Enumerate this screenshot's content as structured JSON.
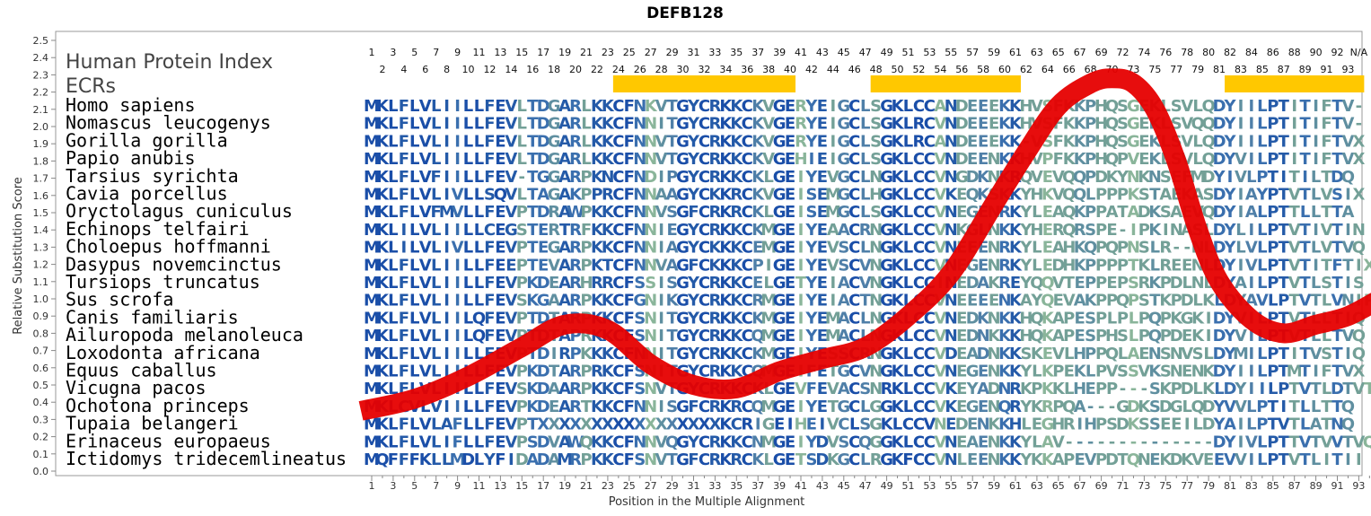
{
  "chart_data": {
    "type": "line",
    "title": "DEFB128",
    "xlabel": "Position in the Multiple Alignment",
    "ylabel": "Relative Substitution Score",
    "ylim": [
      0.0,
      2.5
    ],
    "yticks": [
      "0.0",
      "0.1",
      "0.2",
      "0.3",
      "0.4",
      "0.5",
      "0.6",
      "0.7",
      "0.8",
      "0.9",
      "1.0",
      "1.1",
      "1.2",
      "1.3",
      "1.4",
      "1.5",
      "1.6",
      "1.7",
      "1.8",
      "1.9",
      "2.0",
      "2.1",
      "2.2",
      "2.3",
      "2.4",
      "2.5"
    ],
    "xticks_bottom": [
      "1",
      "3",
      "5",
      "7",
      "9",
      "11",
      "13",
      "15",
      "17",
      "19",
      "21",
      "23",
      "25",
      "27",
      "29",
      "31",
      "33",
      "35",
      "37",
      "39",
      "41",
      "43",
      "45",
      "47",
      "49",
      "51",
      "53",
      "55",
      "57",
      "59",
      "61",
      "63",
      "65",
      "67",
      "69",
      "71",
      "73",
      "75",
      "77",
      "79",
      "81",
      "83",
      "85",
      "87",
      "89",
      "91",
      "93"
    ],
    "top_row1": [
      "1",
      "3",
      "5",
      "7",
      "9",
      "11",
      "13",
      "15",
      "17",
      "19",
      "21",
      "23",
      "25",
      "27",
      "29",
      "31",
      "33",
      "35",
      "37",
      "39",
      "41",
      "43",
      "45",
      "47",
      "49",
      "51",
      "53",
      "55",
      "57",
      "59",
      "61",
      "63",
      "65",
      "67",
      "69",
      "72",
      "74",
      "76",
      "78",
      "80",
      "82",
      "84",
      "86",
      "88",
      "90",
      "92",
      "N/A"
    ],
    "top_row2": [
      "2",
      "4",
      "6",
      "8",
      "10",
      "12",
      "14",
      "16",
      "18",
      "20",
      "22",
      "24",
      "26",
      "28",
      "30",
      "32",
      "34",
      "36",
      "38",
      "40",
      "42",
      "44",
      "46",
      "48",
      "50",
      "52",
      "54",
      "56",
      "58",
      "60",
      "62",
      "64",
      "66",
      "68",
      "70",
      "73",
      "75",
      "77",
      "79",
      "81",
      "83",
      "85",
      "87",
      "89",
      "91",
      "93"
    ],
    "index_labels": [
      "Human Protein Index",
      "ECRs"
    ],
    "ecr_regions": [
      [
        24,
        40
      ],
      [
        48,
        61
      ],
      [
        81,
        93
      ]
    ],
    "curve": {
      "x": [
        0,
        5,
        10,
        15,
        19,
        23,
        27,
        31,
        35,
        39,
        43,
        47,
        51,
        55,
        59,
        62,
        65,
        68,
        70,
        72,
        74,
        76,
        78,
        80,
        83,
        86,
        89,
        92,
        95
      ],
      "y": [
        0.35,
        0.42,
        0.55,
        0.72,
        0.85,
        0.82,
        0.62,
        0.5,
        0.48,
        0.58,
        0.65,
        0.72,
        0.9,
        1.15,
        1.55,
        1.85,
        2.12,
        2.25,
        2.28,
        2.25,
        2.1,
        1.8,
        1.4,
        1.1,
        0.88,
        0.8,
        0.85,
        0.9,
        1.0
      ]
    },
    "species": [
      {
        "name": "Homo sapiens",
        "seq": "MKLFLVLIILLFEVLTDGARLKKCFNKVTGYCRKKCKVGERYEIGCLSGKLCCANDEEEKKHVSFKKPHQSGEKLSVLQDYIILPTITIFTV-"
      },
      {
        "name": "Nomascus leucogenys",
        "seq": "MKLFLVLIILLFEVLTDGARLKKCFNNITGYCRKKCKVGERYEIGCLSGKLRCVNDEEEKKHVSFKKPHQSGEKLSVQQDYIILPTITIFTV-"
      },
      {
        "name": "Gorilla gorilla",
        "seq": "MKLFLVLIILLFEVLTDGARLKKCFNNVTGYCRKKCKVGERYEIGCLSGKLRCANDEEEKK-VSFKKPHQSGEKLSVLQDYIILPTITIFTVX"
      },
      {
        "name": "Papio anubis",
        "seq": "MKLFLVLIILLFEVLTDGARLKKCFNNVTGYCRKKCKVGEHIEIGCLSGKLCCVNDEENKKHVPFKKPHQPVEKLSVLQDYVILPTITIFTVX"
      },
      {
        "name": "Tarsius syrichta",
        "seq": "MKLFLVFIILLFEV-TGGARPKNCFNDIPGYCRKKCKLGEIYEVGCLNGKLCCVNGDKNKRQVEVQQPDKYNKNSEFMDYIVLPTITILTDQ"
      },
      {
        "name": "Cavia porcellus",
        "seq": "MKLFLVLIVLLSQVLTAGAKPPRCFNNAAGYCKKRCKVGEISEMGCLHGKLCCVKEQKSKKYHKVQQLPPPKSTAEKASDYIAYPTVTLVSIX"
      },
      {
        "name": "Oryctolagus cuniculus",
        "seq": "MKLFLVFMVLLFEVPTDRAWPKKCFNNVSGFCRKRCKLGEISEMGCLSGKLCCVNEGENRKYLEAQKPPATADKSAEVQDYIALPTTLLTTA"
      },
      {
        "name": "Echinops telfairi",
        "seq": "MKLILVLIILLCEGSTERTRFKKCFNNIEGYCRKKCKMGEIYEAACRNGKLCCVNKGLNKKYHERQRSPE-IPKINASLDYLILPTVTIVTIN"
      },
      {
        "name": "Choloepus hoffmanni",
        "seq": "MKLILVLIVLLFEVPTEGARPKKCFNNIAGYCKKKCEMGEIYEVSCLNGKLCCVNEEENRKYLEAHKQPQPNSLR--NLDYLVLPTVTLVTVQ"
      },
      {
        "name": "Dasypus novemcinctus",
        "seq": "MKLFLVLIILLFEEPTEVARPKTCFNNVAGFCKKKCPIGEIYEVSCVNGKLCCVNEGENRKYLEDHKPPPPTKLREENLDYIVLPTVTITFTIX"
      },
      {
        "name": "Tursiops truncatus",
        "seq": "MKLFLVLIILLFEVPKDEARHRRCFSSISGYCRKKCELGETYEIACVNGKLCCINEDAKREYQQVTEPPEPSRKPDLNLDYAILPTVTLSTIS"
      },
      {
        "name": "Sus scrofa",
        "seq": "MKLFLVLIILLFEVSKGAARPKKCFGNIKGYCRKKCRMGEIYEIACTNGKLCCVNEEEENKAYQEVAKPPQPSTKPDLKLDYAVLPTVTLVNIP"
      },
      {
        "name": "Canis familiaris",
        "seq": "MKLFLVLIILQFEVPTDTARPKKCFSNITGYCRKKCKMGEIYEMACLNGKLCCVNEDKNKKHQKAPESPLPLPQPKGKIDYVILPTVTLLTIQ"
      },
      {
        "name": "Ailuropoda melanoleuca",
        "seq": "MKLFLVLIILQFEVPTDTAPRKKCFSNITGYCRKKCQMGEIYEMACLNGKLCCVNEDNKKKHQKAPESPHSLPQPDEKIDYVILPTVTLLTVQ"
      },
      {
        "name": "Loxodonta africana",
        "seq": "MKLFLVLIILLFEVPTDIRPKKKCFNNITGYCRKKCKMGEIYESSCRNGKLCCVDEADNKKSKEVLHPPQLAENSNVSLDYMILPTITVSTIQ"
      },
      {
        "name": "Equus caballus",
        "seq": "MKLFLVLIILLFEVPKDTARPRKCFSNITGYCRKKCQMGEIFETGCVNGKLCCVNEGENKKYLKPEKLPVSSVKSNENKDYIILPTMTIFTVX"
      },
      {
        "name": "Vicugna pacos",
        "seq": "MKLFLVLIILLFEVSKDAARPKKCFSNVTGYCRKKCKLGEVFEVACSNRKLCCVKEYADNRKPKKLHEPP---SKPDLKLDYIILPTVTLDTVT"
      },
      {
        "name": "Ochotona princeps",
        "seq": "MKLCVLVIILLFEVPKDEARTKKCFNNISGFCRKRCQMGEIYETGCLGGKLCCVKEGENQRYKRPQA---GDKSDGLQDYVVLPTITLLTTQ"
      },
      {
        "name": "Tupaia belangeri",
        "seq": "MKLFLVLAFLLFEVPTXXXXXXXXXXXXXXXXXKCRIGEIHEIVCLSGKLCCVNEDENKKHLEGHRIHPSDKSSEEILDYAILPTVTLATNQ"
      },
      {
        "name": "Erinaceus europaeus",
        "seq": "MKLFLVLIFLLFEVPSDVAWQKKCFNNVQGYCRKKCNMGEIYDVSCQGGKLCCVNEAENKKYLAV--------------DYIVLPTTVTVVTVQ"
      },
      {
        "name": "Ictidomys tridecemlineatus",
        "seq": "MQFFFKLLMDLYFIDADAMRPKKCFSNVTGFCRKRCKLGETSDKGCLRGKFCCVNLEENKKYKKAPEVPDTQNEKDKVEEVVILPTVTLITII"
      }
    ]
  }
}
